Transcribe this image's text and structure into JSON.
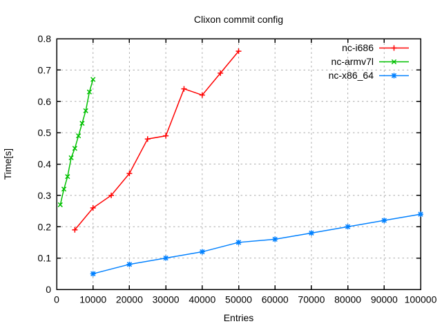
{
  "window": {
    "title": "Clixon commit config"
  },
  "chart_data": {
    "type": "line",
    "title": "Clixon commit config",
    "xlabel": "Entries",
    "ylabel": "Time[s]",
    "xlim": [
      0,
      100000
    ],
    "ylim": [
      0,
      0.8
    ],
    "xticks": [
      0,
      10000,
      20000,
      30000,
      40000,
      50000,
      60000,
      70000,
      80000,
      90000,
      100000
    ],
    "xtick_labels": [
      "0",
      "10000",
      "20000",
      "30000",
      "40000",
      "50000",
      "60000",
      "70000",
      "80000",
      "90000",
      "100000"
    ],
    "yticks": [
      0,
      0.1,
      0.2,
      0.3,
      0.4,
      0.5,
      0.6,
      0.7,
      0.8
    ],
    "ytick_labels": [
      "0",
      "0.1",
      "0.2",
      "0.3",
      "0.4",
      "0.5",
      "0.6",
      "0.7",
      "0.8"
    ],
    "grid": true,
    "grid_color": "#aaaaaa",
    "border_color": "#000000",
    "legend_position": "top-right",
    "series": [
      {
        "name": "nc-i686",
        "color": "#ff0000",
        "marker": "plus",
        "points": [
          [
            5000,
            0.19
          ],
          [
            10000,
            0.26
          ],
          [
            15000,
            0.3
          ],
          [
            20000,
            0.37
          ],
          [
            25000,
            0.48
          ],
          [
            30000,
            0.49
          ],
          [
            35000,
            0.64
          ],
          [
            40000,
            0.62
          ],
          [
            45000,
            0.69
          ],
          [
            50000,
            0.76
          ]
        ]
      },
      {
        "name": "nc-armv7l",
        "color": "#00c000",
        "marker": "cross",
        "points": [
          [
            1000,
            0.27
          ],
          [
            2000,
            0.32
          ],
          [
            3000,
            0.36
          ],
          [
            4000,
            0.42
          ],
          [
            5000,
            0.45
          ],
          [
            6000,
            0.49
          ],
          [
            7000,
            0.53
          ],
          [
            8000,
            0.57
          ],
          [
            9000,
            0.63
          ],
          [
            10000,
            0.67
          ]
        ]
      },
      {
        "name": "nc-x86_64",
        "color": "#0080ff",
        "marker": "asterisk",
        "points": [
          [
            10000,
            0.05
          ],
          [
            20000,
            0.08
          ],
          [
            30000,
            0.1
          ],
          [
            40000,
            0.12
          ],
          [
            50000,
            0.15
          ],
          [
            60000,
            0.16
          ],
          [
            70000,
            0.18
          ],
          [
            80000,
            0.2
          ],
          [
            90000,
            0.22
          ],
          [
            100000,
            0.24
          ]
        ]
      }
    ]
  }
}
